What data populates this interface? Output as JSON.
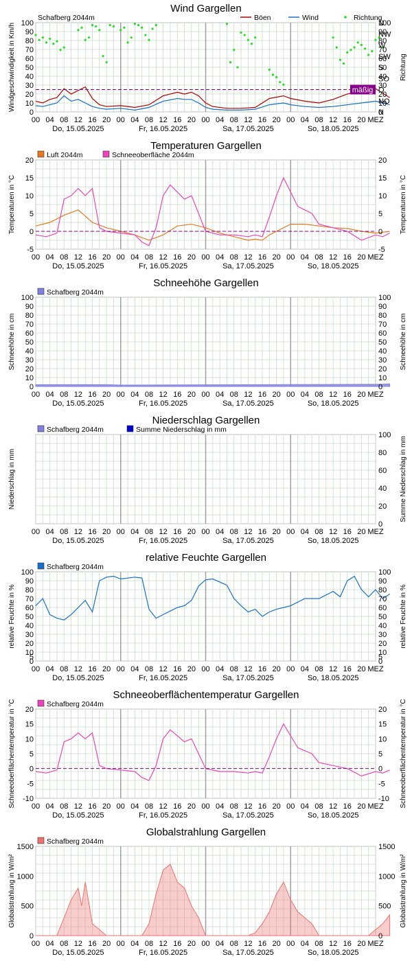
{
  "axis_common": {
    "hour_ticks": [
      "00",
      "04",
      "08",
      "12",
      "16",
      "20",
      "00",
      "04",
      "08",
      "12",
      "16",
      "20",
      "00",
      "04",
      "08",
      "12",
      "16",
      "20",
      "00",
      "04",
      "08",
      "12",
      "16",
      "20"
    ],
    "tz_label": "MEZ",
    "days": [
      "Do, 15.05.2025",
      "Fr, 16.05.2025",
      "Sa, 17.05.2025",
      "So, 18.05.2025"
    ]
  },
  "colors": {
    "grid": "#c8dcc8",
    "day_line": "#a0a0a0",
    "gust": "#b00000",
    "wind": "#1870c8",
    "direction": "#22dd22",
    "air": "#e87820",
    "snow_surface": "#ee44bb",
    "snow_depth": "#8080e0",
    "precip": "#8080e0",
    "precip_sum": "#0000cc",
    "humidity": "#1870c8",
    "radiation": "#f07070",
    "zero_line": "#800080",
    "badge": "#880088"
  },
  "chart_data": [
    {
      "id": "wind",
      "type": "line",
      "title": "Wind    Gargellen",
      "ylabel": "Windgeschwindigkeit in Km/h",
      "ylabel_right": "Richtung",
      "ylim": [
        0,
        100
      ],
      "yticks": [
        "0",
        "10",
        "20",
        "30",
        "40",
        "50",
        "60",
        "70",
        "80",
        "90",
        "100"
      ],
      "yticks_right": [
        "N",
        "NO",
        "O",
        "SO",
        "S",
        "SW",
        "W",
        "NW",
        "N"
      ],
      "legend_station": "Schafberg    2044m",
      "series": [
        {
          "name": "Böen",
          "x": [
            0,
            2,
            4,
            6,
            8,
            10,
            12,
            14,
            16,
            18,
            20,
            24,
            28,
            32,
            36,
            40,
            42,
            44,
            46,
            48,
            50,
            54,
            58,
            62,
            66,
            70,
            72,
            76,
            80,
            84,
            88,
            92,
            96,
            100
          ],
          "values": [
            12,
            10,
            14,
            16,
            26,
            20,
            24,
            28,
            15,
            8,
            6,
            7,
            5,
            8,
            18,
            22,
            20,
            22,
            18,
            10,
            6,
            4,
            4,
            5,
            15,
            18,
            15,
            12,
            10,
            14,
            20,
            24,
            26,
            16
          ]
        },
        {
          "name": "Wind",
          "x": [
            0,
            2,
            4,
            6,
            8,
            10,
            12,
            14,
            16,
            18,
            20,
            24,
            28,
            32,
            36,
            40,
            42,
            44,
            46,
            48,
            50,
            54,
            58,
            62,
            66,
            70,
            72,
            76,
            80,
            84,
            88,
            92,
            96,
            100
          ],
          "values": [
            7,
            6,
            8,
            10,
            18,
            12,
            14,
            10,
            6,
            4,
            3,
            4,
            2,
            5,
            12,
            15,
            14,
            14,
            10,
            5,
            3,
            2,
            2,
            3,
            8,
            10,
            8,
            6,
            5,
            6,
            8,
            10,
            12,
            8
          ]
        },
        {
          "name": "Richtung",
          "type": "scatter",
          "axis": "right",
          "x": [
            0,
            1,
            2,
            3,
            4,
            5,
            6,
            7,
            8,
            12,
            13,
            14,
            15,
            16,
            17,
            18,
            19,
            20,
            21,
            22,
            24,
            25,
            26,
            27,
            28,
            29,
            30,
            31,
            32,
            33,
            34,
            54,
            55,
            56,
            57,
            58,
            59,
            60,
            61,
            62,
            66,
            67,
            68,
            69,
            70,
            84,
            85,
            86,
            87,
            88,
            89,
            90,
            91,
            92,
            93,
            94,
            95,
            96,
            97,
            98
          ],
          "values": [
            310,
            290,
            300,
            280,
            295,
            275,
            285,
            250,
            260,
            330,
            340,
            290,
            300,
            350,
            345,
            330,
            225,
            200,
            350,
            345,
            330,
            340,
            280,
            300,
            355,
            350,
            340,
            310,
            290,
            335,
            350,
            355,
            200,
            250,
            180,
            320,
            310,
            290,
            275,
            300,
            170,
            150,
            140,
            120,
            110,
            300,
            260,
            210,
            195,
            240,
            250,
            260,
            280,
            270,
            255,
            230,
            245,
            290,
            300,
            260
          ]
        }
      ],
      "annotation": {
        "label": "mäßig",
        "y": 25
      }
    },
    {
      "id": "temp",
      "type": "line",
      "title": "Temperaturen    Gargellen",
      "ylabel": "Temperaturen in °C",
      "ylabel_right": "Temperaturen in °C",
      "ylim": [
        -5,
        20
      ],
      "yticks": [
        "-5",
        "0",
        "5",
        "10",
        "15",
        "20"
      ],
      "series": [
        {
          "name": "Luft   2044m",
          "x": [
            0,
            4,
            8,
            12,
            16,
            20,
            24,
            28,
            32,
            36,
            40,
            44,
            48,
            52,
            56,
            60,
            62,
            64,
            66,
            72,
            76,
            80,
            84,
            88,
            92,
            96,
            100
          ],
          "values": [
            1.5,
            2.5,
            4.5,
            6,
            2.5,
            1,
            0,
            -1,
            -2.5,
            -1,
            1.5,
            2,
            1,
            -0.5,
            -1.5,
            -2.5,
            -2.2,
            -2.5,
            -1,
            2,
            2,
            1.5,
            1,
            0.8,
            0,
            -0.5,
            0
          ]
        },
        {
          "name": "Schneeoberfläche   2044m",
          "x": [
            0,
            3,
            6,
            8,
            10,
            12,
            14,
            16,
            18,
            20,
            24,
            28,
            30,
            32,
            34,
            36,
            38,
            40,
            42,
            44,
            46,
            48,
            52,
            56,
            60,
            62,
            64,
            66,
            68,
            70,
            72,
            74,
            76,
            78,
            80,
            84,
            88,
            92,
            96,
            98,
            100
          ],
          "values": [
            -1,
            -1.5,
            -0.5,
            9,
            10,
            12,
            10,
            12,
            1,
            0,
            -0.5,
            -1,
            -3,
            -4,
            1,
            10,
            13,
            11,
            9,
            10,
            5,
            0,
            -1,
            -1,
            -1.5,
            -1,
            -1.5,
            4,
            10,
            15,
            11,
            7,
            6,
            5,
            2,
            1,
            0,
            -2.5,
            -1,
            -1.5,
            -0.5
          ]
        }
      ]
    },
    {
      "id": "snowdepth",
      "type": "area",
      "title": "Schneehöhe    Gargellen",
      "ylabel": "Schneehöhe in cm",
      "ylabel_right": "Schneehöhe in cm",
      "ylim": [
        0,
        100
      ],
      "yticks": [
        "0",
        "10",
        "20",
        "30",
        "40",
        "50",
        "60",
        "70",
        "80",
        "90",
        "100"
      ],
      "legend_station": "Schafberg    2044m",
      "series": [
        {
          "name": "Schafberg    2044m",
          "x": [
            0,
            20,
            24,
            98,
            100
          ],
          "values": [
            2,
            2,
            1.5,
            2.5,
            3
          ]
        }
      ]
    },
    {
      "id": "precip",
      "type": "bar",
      "title": "Niederschlag    Gargellen",
      "ylabel": "Niederschlag in mm",
      "ylabel_right": "Summe Niederschlag in mm",
      "ylim": [
        0,
        100
      ],
      "yticks_right": [
        "0",
        "20",
        "40",
        "60",
        "80",
        "100"
      ],
      "series": [
        {
          "name": "Schafberg    2044m",
          "values": []
        },
        {
          "name": "Summe Niederschlag in mm",
          "values": []
        }
      ]
    },
    {
      "id": "humidity",
      "type": "line",
      "title": "relative Feuchte    Gargellen",
      "ylabel": "relative Feuchte in %",
      "ylabel_right": "relative Feuchte in %",
      "ylim": [
        0,
        100
      ],
      "yticks": [
        "0",
        "5",
        "10",
        "20",
        "30",
        "40",
        "50",
        "60",
        "70",
        "80",
        "90",
        "100"
      ],
      "series": [
        {
          "name": "Schafberg    2044m",
          "x": [
            0,
            2,
            4,
            6,
            8,
            10,
            12,
            14,
            16,
            18,
            20,
            22,
            24,
            28,
            30,
            32,
            34,
            36,
            38,
            40,
            42,
            44,
            46,
            48,
            50,
            54,
            56,
            58,
            60,
            62,
            64,
            66,
            68,
            70,
            72,
            76,
            80,
            84,
            86,
            88,
            90,
            92,
            94,
            96,
            98,
            100
          ],
          "values": [
            62,
            70,
            52,
            48,
            46,
            52,
            60,
            68,
            55,
            90,
            94,
            95,
            92,
            94,
            93,
            58,
            48,
            52,
            56,
            60,
            62,
            68,
            84,
            91,
            92,
            85,
            70,
            62,
            55,
            58,
            50,
            55,
            58,
            60,
            62,
            70,
            70,
            78,
            72,
            90,
            95,
            80,
            72,
            80,
            70,
            75
          ]
        }
      ]
    },
    {
      "id": "surfacetemp",
      "type": "line",
      "title": "Schneeoberflächentemperatur    Gargellen",
      "ylabel": "Schneeoberflächentemperatur in °C",
      "ylabel_right": "Schneeoberflächentemperatur in °C",
      "ylim": [
        -10,
        20
      ],
      "yticks": [
        "-10",
        "-5",
        "0",
        "5",
        "10",
        "15",
        "20"
      ],
      "series": [
        {
          "name": "Schafberg    2044m",
          "x": [
            0,
            3,
            6,
            8,
            10,
            12,
            14,
            16,
            18,
            20,
            24,
            28,
            30,
            32,
            34,
            36,
            38,
            40,
            42,
            44,
            46,
            48,
            52,
            56,
            60,
            62,
            64,
            66,
            68,
            70,
            72,
            74,
            76,
            78,
            80,
            84,
            88,
            92,
            96,
            98,
            100
          ],
          "values": [
            -1,
            -1.5,
            -0.5,
            9,
            10,
            12,
            10,
            12,
            1,
            0,
            -0.5,
            -1,
            -3,
            -4,
            1,
            10,
            13,
            11,
            9,
            10,
            5,
            0,
            -1,
            -1,
            -1.5,
            -1,
            -1.5,
            4,
            10,
            15,
            11,
            7,
            6,
            5,
            2,
            1,
            0,
            -2.5,
            -1,
            -1.5,
            -0.5
          ]
        }
      ]
    },
    {
      "id": "radiation",
      "type": "area",
      "title": "Globalstrahlung    Gargellen",
      "ylabel": "Globalstrahlung in W/m²",
      "ylabel_right": "Globalstrahlung in W/m²",
      "ylim": [
        0,
        1500
      ],
      "yticks": [
        "0",
        "500",
        "1000",
        "1500"
      ],
      "series": [
        {
          "name": "Schafberg    2044m",
          "x": [
            0,
            6,
            8,
            10,
            12,
            13,
            14,
            16,
            18,
            20,
            24,
            30,
            32,
            34,
            36,
            38,
            40,
            42,
            44,
            46,
            48,
            54,
            56,
            58,
            60,
            62,
            64,
            66,
            68,
            70,
            72,
            74,
            76,
            78,
            80,
            84,
            90,
            92,
            94,
            96,
            98,
            100
          ],
          "values": [
            0,
            0,
            300,
            600,
            800,
            500,
            900,
            200,
            100,
            0,
            0,
            0,
            200,
            700,
            1100,
            1200,
            900,
            800,
            500,
            300,
            0,
            0,
            0,
            0,
            0,
            50,
            200,
            400,
            700,
            900,
            600,
            400,
            300,
            200,
            0,
            0,
            0,
            0,
            0,
            100,
            200,
            350
          ]
        }
      ]
    }
  ]
}
